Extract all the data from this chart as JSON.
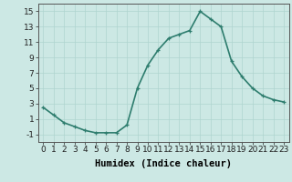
{
  "x": [
    0,
    1,
    2,
    3,
    4,
    5,
    6,
    7,
    8,
    9,
    10,
    11,
    12,
    13,
    14,
    15,
    16,
    17,
    18,
    19,
    20,
    21,
    22,
    23
  ],
  "y": [
    2.5,
    1.5,
    0.5,
    0.0,
    -0.5,
    -0.8,
    -0.8,
    -0.8,
    0.2,
    5.0,
    8.0,
    10.0,
    11.5,
    12.0,
    12.5,
    15.0,
    14.0,
    13.0,
    8.5,
    6.5,
    5.0,
    4.0,
    3.5,
    3.2
  ],
  "line_color": "#2e7d6e",
  "marker": "+",
  "bg_color": "#cce8e4",
  "grid_color": "#afd4cf",
  "xlabel": "Humidex (Indice chaleur)",
  "ylabel": "",
  "title": "",
  "xlim": [
    -0.5,
    23.5
  ],
  "ylim": [
    -2,
    16
  ],
  "yticks": [
    -1,
    1,
    3,
    5,
    7,
    9,
    11,
    13,
    15
  ],
  "xticks": [
    0,
    1,
    2,
    3,
    4,
    5,
    6,
    7,
    8,
    9,
    10,
    11,
    12,
    13,
    14,
    15,
    16,
    17,
    18,
    19,
    20,
    21,
    22,
    23
  ],
  "xtick_labels": [
    "0",
    "1",
    "2",
    "3",
    "4",
    "5",
    "6",
    "7",
    "8",
    "9",
    "10",
    "11",
    "12",
    "13",
    "14",
    "15",
    "16",
    "17",
    "18",
    "19",
    "20",
    "21",
    "22",
    "23"
  ],
  "xlabel_fontsize": 7.5,
  "tick_fontsize": 6.5,
  "linewidth": 1.2,
  "markersize": 3.5
}
